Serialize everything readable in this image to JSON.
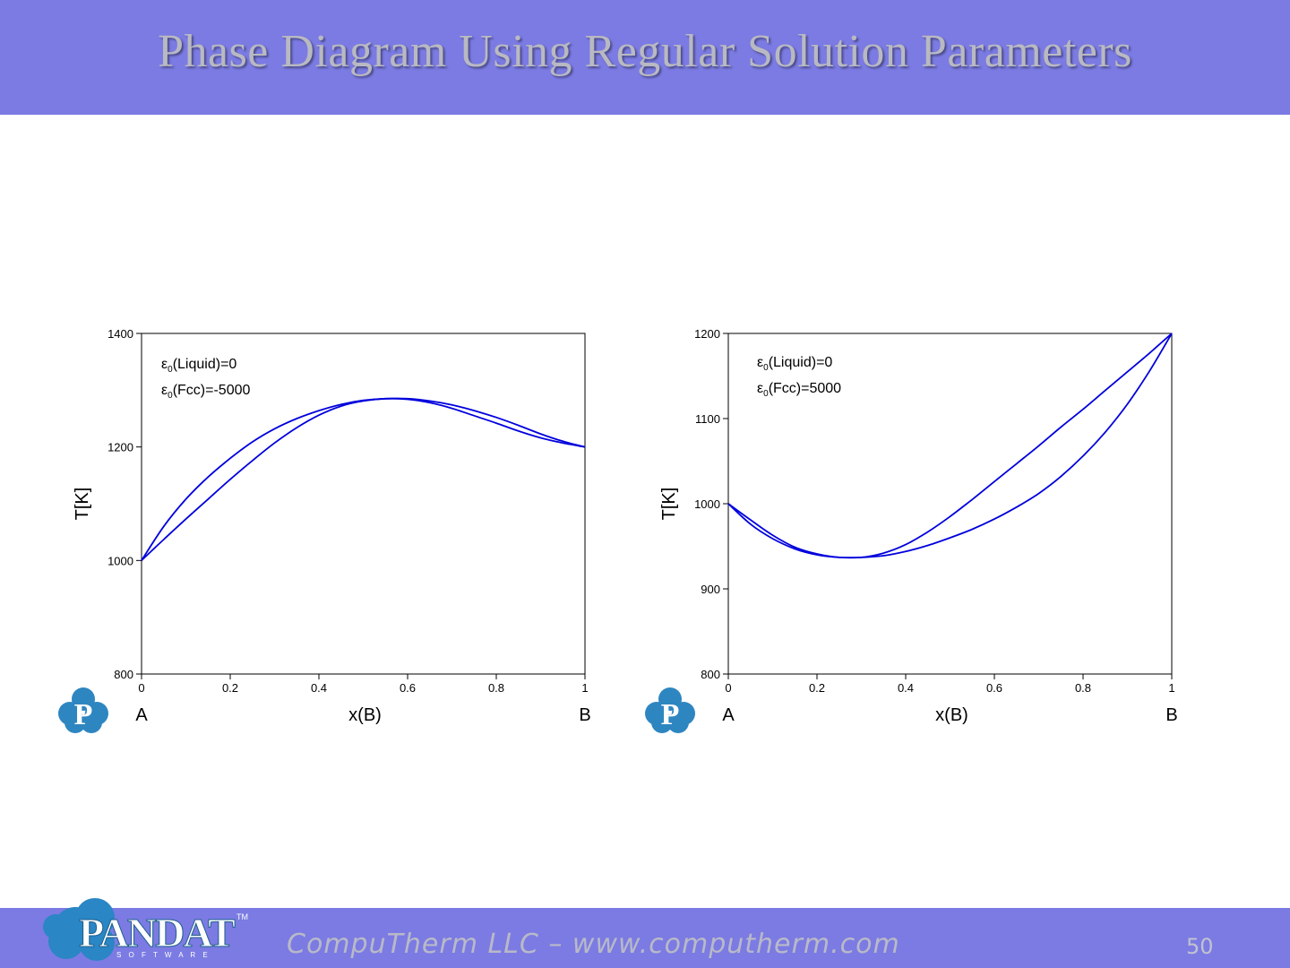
{
  "slide": {
    "title": "Phase Diagram Using Regular Solution Parameters",
    "footer_text": "CompuTherm LLC – www.computherm.com",
    "page_number": "50",
    "logo": {
      "text": "PANDAT",
      "subtext": "S O F T W A R E",
      "trademark": "TM",
      "letter": "P"
    }
  },
  "chart_data": [
    {
      "type": "line",
      "xlabel": "x(B)",
      "ylabel": "T[K]",
      "xlim": [
        0,
        1
      ],
      "ylim": [
        800,
        1400
      ],
      "x_ticks": [
        "0",
        "0.2",
        "0.4",
        "0.6",
        "0.8",
        "1"
      ],
      "y_ticks": [
        "800",
        "1000",
        "1200",
        "1400"
      ],
      "x_end_labels": [
        "A",
        "B"
      ],
      "annotations": [
        {
          "symbol": "ε",
          "sub": "0",
          "text": "(Liquid)=0"
        },
        {
          "symbol": "ε",
          "sub": "0",
          "text": "(Fcc)=-5000"
        }
      ],
      "line_color": "#0000dd",
      "series": [
        {
          "x": [
            0,
            0.05,
            0.1,
            0.15,
            0.2,
            0.25,
            0.3,
            0.35,
            0.4,
            0.45,
            0.5,
            0.55,
            0.6,
            0.65,
            0.7,
            0.75,
            0.8,
            0.85,
            0.9,
            0.95,
            1.0
          ],
          "y": [
            1000,
            1060,
            1108,
            1147,
            1180,
            1209,
            1232,
            1250,
            1264,
            1275,
            1282,
            1285,
            1285,
            1281,
            1274,
            1264,
            1252,
            1238,
            1223,
            1210,
            1200
          ]
        },
        {
          "x": [
            0,
            0.05,
            0.1,
            0.15,
            0.2,
            0.25,
            0.3,
            0.35,
            0.4,
            0.45,
            0.5,
            0.55,
            0.6,
            0.65,
            0.7,
            0.75,
            0.8,
            0.85,
            0.9,
            0.95,
            1.0
          ],
          "y": [
            1000,
            1037,
            1073,
            1108,
            1143,
            1176,
            1207,
            1234,
            1256,
            1272,
            1281,
            1285,
            1284,
            1278,
            1268,
            1255,
            1242,
            1228,
            1216,
            1207,
            1200
          ]
        }
      ]
    },
    {
      "type": "line",
      "xlabel": "x(B)",
      "ylabel": "T[K]",
      "xlim": [
        0,
        1
      ],
      "ylim": [
        800,
        1200
      ],
      "x_ticks": [
        "0",
        "0.2",
        "0.4",
        "0.6",
        "0.8",
        "1"
      ],
      "y_ticks": [
        "800",
        "900",
        "1000",
        "1100",
        "1200"
      ],
      "x_end_labels": [
        "A",
        "B"
      ],
      "annotations": [
        {
          "symbol": "ε",
          "sub": "0",
          "text": "(Liquid)=0"
        },
        {
          "symbol": "ε",
          "sub": "0",
          "text": "(Fcc)=5000"
        }
      ],
      "line_color": "#0000dd",
      "series": [
        {
          "x": [
            0,
            0.05,
            0.1,
            0.15,
            0.2,
            0.25,
            0.3,
            0.35,
            0.4,
            0.45,
            0.5,
            0.55,
            0.6,
            0.65,
            0.7,
            0.75,
            0.8,
            0.85,
            0.9,
            0.95,
            1.0
          ],
          "y": [
            1000,
            976,
            959,
            947,
            940,
            937,
            937,
            942,
            952,
            967,
            985,
            1005,
            1026,
            1047,
            1068,
            1090,
            1111,
            1133,
            1155,
            1177,
            1200
          ]
        },
        {
          "x": [
            0,
            0.05,
            0.1,
            0.15,
            0.2,
            0.25,
            0.3,
            0.35,
            0.4,
            0.45,
            0.5,
            0.55,
            0.6,
            0.65,
            0.7,
            0.75,
            0.8,
            0.85,
            0.9,
            0.95,
            1.0
          ],
          "y": [
            1000,
            981,
            963,
            949,
            941,
            937,
            937,
            939,
            944,
            951,
            960,
            970,
            982,
            996,
            1012,
            1032,
            1056,
            1084,
            1117,
            1156,
            1200
          ]
        }
      ]
    }
  ]
}
